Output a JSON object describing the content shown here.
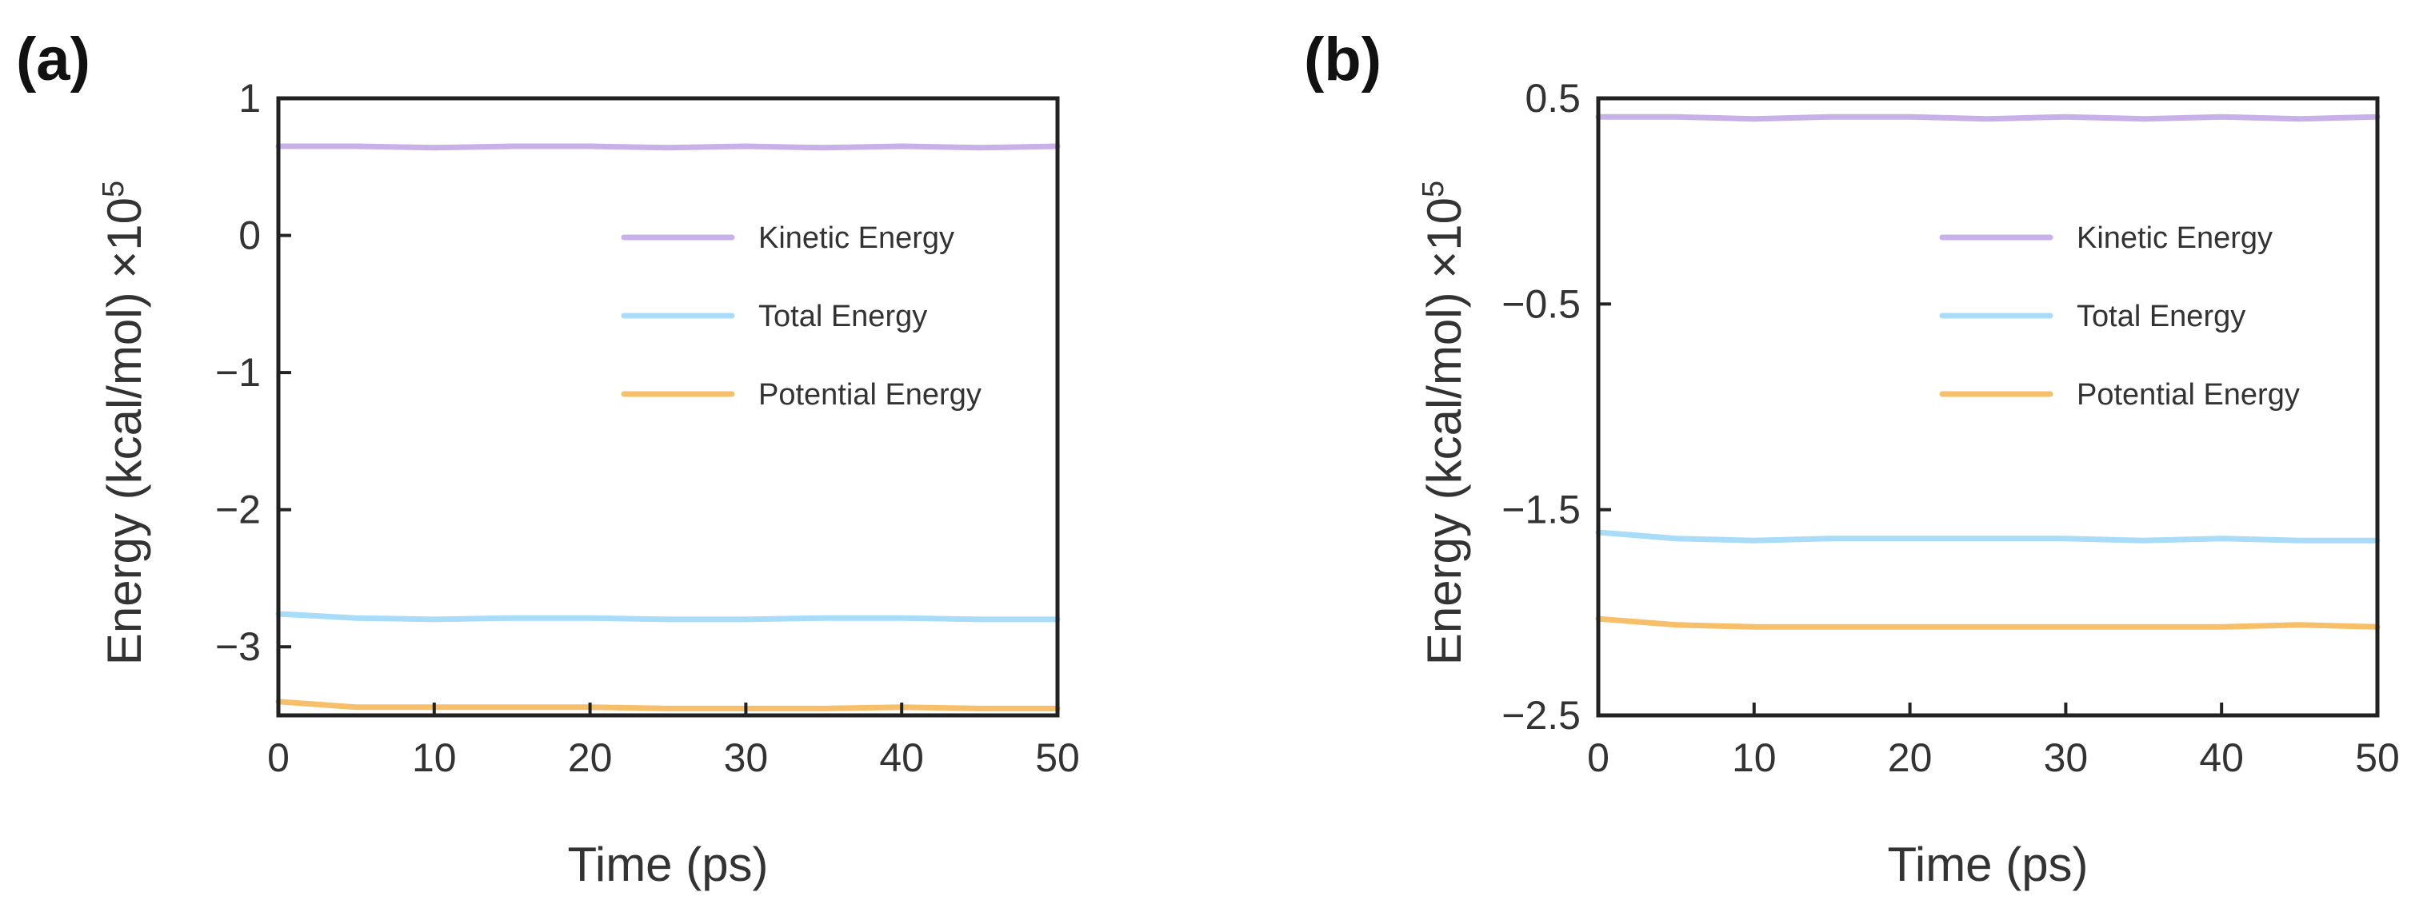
{
  "chart_data": [
    {
      "panel_label": "(a)",
      "type": "line",
      "xlabel": "Time (ps)",
      "ylabel": "Energy (kcal/mol) ×10",
      "ylabel_sup": "5",
      "xlim": [
        0,
        50
      ],
      "ylim": [
        -3.5,
        1
      ],
      "xticks": [
        0,
        10,
        20,
        30,
        40,
        50
      ],
      "xtick_labels": [
        "0",
        "10",
        "20",
        "30",
        "40",
        "50"
      ],
      "yticks": [
        1,
        0,
        -1,
        -2,
        -3
      ],
      "ytick_labels": [
        "1",
        "0",
        "−1",
        "−2",
        "−3"
      ],
      "legend": "upper-right",
      "series": [
        {
          "name": "Kinetic Energy",
          "color": "#c8b0e8",
          "x": [
            0,
            5,
            10,
            15,
            20,
            25,
            30,
            35,
            40,
            45,
            50
          ],
          "y": [
            0.65,
            0.65,
            0.64,
            0.65,
            0.65,
            0.64,
            0.65,
            0.64,
            0.65,
            0.64,
            0.65
          ]
        },
        {
          "name": "Total Energy",
          "color": "#a8dcf8",
          "x": [
            0,
            5,
            10,
            15,
            20,
            25,
            30,
            35,
            40,
            45,
            50
          ],
          "y": [
            -2.76,
            -2.79,
            -2.8,
            -2.79,
            -2.79,
            -2.8,
            -2.8,
            -2.79,
            -2.79,
            -2.8,
            -2.8
          ]
        },
        {
          "name": "Potential Energy",
          "color": "#f8bf6a",
          "x": [
            0,
            5,
            10,
            15,
            20,
            25,
            30,
            35,
            40,
            45,
            50
          ],
          "y": [
            -3.4,
            -3.44,
            -3.44,
            -3.44,
            -3.44,
            -3.45,
            -3.45,
            -3.45,
            -3.44,
            -3.45,
            -3.45
          ]
        }
      ]
    },
    {
      "panel_label": "(b)",
      "type": "line",
      "xlabel": "Time (ps)",
      "ylabel": "Energy (kcal/mol) ×10",
      "ylabel_sup": "5",
      "xlim": [
        0,
        50
      ],
      "ylim": [
        -2.5,
        0.5
      ],
      "xticks": [
        0,
        10,
        20,
        30,
        40,
        50
      ],
      "xtick_labels": [
        "0",
        "10",
        "20",
        "30",
        "40",
        "50"
      ],
      "yticks": [
        0.5,
        -0.5,
        -1.5,
        -2.5
      ],
      "ytick_labels": [
        "0.5",
        "−0.5",
        "−1.5",
        "−2.5"
      ],
      "legend": "upper-right",
      "series": [
        {
          "name": "Kinetic Energy",
          "color": "#c8b0e8",
          "x": [
            0,
            5,
            10,
            15,
            20,
            25,
            30,
            35,
            40,
            45,
            50
          ],
          "y": [
            0.41,
            0.41,
            0.4,
            0.41,
            0.41,
            0.4,
            0.41,
            0.4,
            0.41,
            0.4,
            0.41
          ]
        },
        {
          "name": "Total Energy",
          "color": "#a8dcf8",
          "x": [
            0,
            5,
            10,
            15,
            20,
            25,
            30,
            35,
            40,
            45,
            50
          ],
          "y": [
            -1.61,
            -1.64,
            -1.65,
            -1.64,
            -1.64,
            -1.64,
            -1.64,
            -1.65,
            -1.64,
            -1.65,
            -1.65
          ]
        },
        {
          "name": "Potential Energy",
          "color": "#f8bf6a",
          "x": [
            0,
            5,
            10,
            15,
            20,
            25,
            30,
            35,
            40,
            45,
            50
          ],
          "y": [
            -2.03,
            -2.06,
            -2.07,
            -2.07,
            -2.07,
            -2.07,
            -2.07,
            -2.07,
            -2.07,
            -2.06,
            -2.07
          ]
        }
      ]
    }
  ]
}
